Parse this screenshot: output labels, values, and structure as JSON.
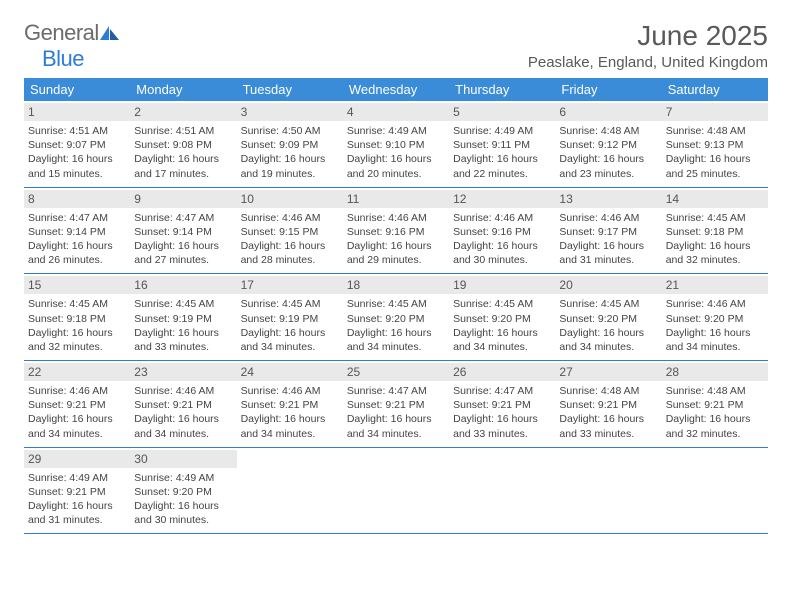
{
  "logo": {
    "general": "General",
    "blue": "Blue"
  },
  "title": "June 2025",
  "location": "Peaslake, England, United Kingdom",
  "colors": {
    "header_bg": "#3a8bd8",
    "daynum_bg": "#e9e9e9",
    "border": "#2e7cd6",
    "text": "#444444",
    "title_color": "#595959"
  },
  "weekdays": [
    "Sunday",
    "Monday",
    "Tuesday",
    "Wednesday",
    "Thursday",
    "Friday",
    "Saturday"
  ],
  "days": [
    {
      "n": "1",
      "sr": "4:51 AM",
      "ss": "9:07 PM",
      "dl": "16 hours and 15 minutes."
    },
    {
      "n": "2",
      "sr": "4:51 AM",
      "ss": "9:08 PM",
      "dl": "16 hours and 17 minutes."
    },
    {
      "n": "3",
      "sr": "4:50 AM",
      "ss": "9:09 PM",
      "dl": "16 hours and 19 minutes."
    },
    {
      "n": "4",
      "sr": "4:49 AM",
      "ss": "9:10 PM",
      "dl": "16 hours and 20 minutes."
    },
    {
      "n": "5",
      "sr": "4:49 AM",
      "ss": "9:11 PM",
      "dl": "16 hours and 22 minutes."
    },
    {
      "n": "6",
      "sr": "4:48 AM",
      "ss": "9:12 PM",
      "dl": "16 hours and 23 minutes."
    },
    {
      "n": "7",
      "sr": "4:48 AM",
      "ss": "9:13 PM",
      "dl": "16 hours and 25 minutes."
    },
    {
      "n": "8",
      "sr": "4:47 AM",
      "ss": "9:14 PM",
      "dl": "16 hours and 26 minutes."
    },
    {
      "n": "9",
      "sr": "4:47 AM",
      "ss": "9:14 PM",
      "dl": "16 hours and 27 minutes."
    },
    {
      "n": "10",
      "sr": "4:46 AM",
      "ss": "9:15 PM",
      "dl": "16 hours and 28 minutes."
    },
    {
      "n": "11",
      "sr": "4:46 AM",
      "ss": "9:16 PM",
      "dl": "16 hours and 29 minutes."
    },
    {
      "n": "12",
      "sr": "4:46 AM",
      "ss": "9:16 PM",
      "dl": "16 hours and 30 minutes."
    },
    {
      "n": "13",
      "sr": "4:46 AM",
      "ss": "9:17 PM",
      "dl": "16 hours and 31 minutes."
    },
    {
      "n": "14",
      "sr": "4:45 AM",
      "ss": "9:18 PM",
      "dl": "16 hours and 32 minutes."
    },
    {
      "n": "15",
      "sr": "4:45 AM",
      "ss": "9:18 PM",
      "dl": "16 hours and 32 minutes."
    },
    {
      "n": "16",
      "sr": "4:45 AM",
      "ss": "9:19 PM",
      "dl": "16 hours and 33 minutes."
    },
    {
      "n": "17",
      "sr": "4:45 AM",
      "ss": "9:19 PM",
      "dl": "16 hours and 34 minutes."
    },
    {
      "n": "18",
      "sr": "4:45 AM",
      "ss": "9:20 PM",
      "dl": "16 hours and 34 minutes."
    },
    {
      "n": "19",
      "sr": "4:45 AM",
      "ss": "9:20 PM",
      "dl": "16 hours and 34 minutes."
    },
    {
      "n": "20",
      "sr": "4:45 AM",
      "ss": "9:20 PM",
      "dl": "16 hours and 34 minutes."
    },
    {
      "n": "21",
      "sr": "4:46 AM",
      "ss": "9:20 PM",
      "dl": "16 hours and 34 minutes."
    },
    {
      "n": "22",
      "sr": "4:46 AM",
      "ss": "9:21 PM",
      "dl": "16 hours and 34 minutes."
    },
    {
      "n": "23",
      "sr": "4:46 AM",
      "ss": "9:21 PM",
      "dl": "16 hours and 34 minutes."
    },
    {
      "n": "24",
      "sr": "4:46 AM",
      "ss": "9:21 PM",
      "dl": "16 hours and 34 minutes."
    },
    {
      "n": "25",
      "sr": "4:47 AM",
      "ss": "9:21 PM",
      "dl": "16 hours and 34 minutes."
    },
    {
      "n": "26",
      "sr": "4:47 AM",
      "ss": "9:21 PM",
      "dl": "16 hours and 33 minutes."
    },
    {
      "n": "27",
      "sr": "4:48 AM",
      "ss": "9:21 PM",
      "dl": "16 hours and 33 minutes."
    },
    {
      "n": "28",
      "sr": "4:48 AM",
      "ss": "9:21 PM",
      "dl": "16 hours and 32 minutes."
    },
    {
      "n": "29",
      "sr": "4:49 AM",
      "ss": "9:21 PM",
      "dl": "16 hours and 31 minutes."
    },
    {
      "n": "30",
      "sr": "4:49 AM",
      "ss": "9:20 PM",
      "dl": "16 hours and 30 minutes."
    }
  ],
  "labels": {
    "sunrise": "Sunrise: ",
    "sunset": "Sunset: ",
    "daylight": "Daylight: "
  }
}
